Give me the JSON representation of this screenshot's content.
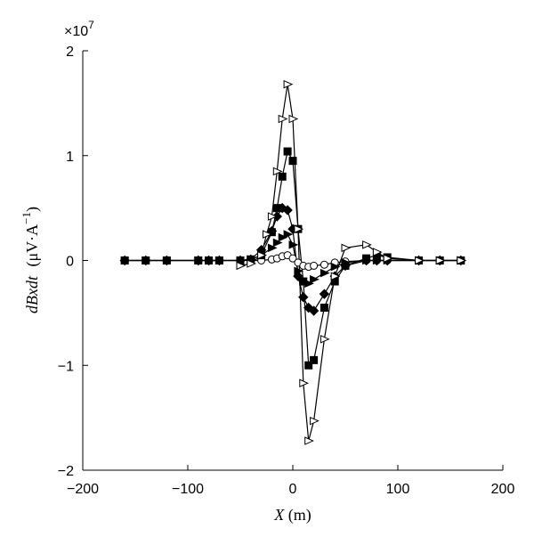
{
  "chart_data": {
    "type": "line",
    "title": "",
    "xlabel_var": "X",
    "xlabel_unit": "(m)",
    "ylabel_var": "dBxdt",
    "ylabel_unit_main": "(μV·A",
    "ylabel_unit_exp": "−1",
    "ylabel_unit_close": ")",
    "y_multiplier_base": "×10",
    "y_multiplier_exp": "7",
    "xlim": [
      -200,
      200
    ],
    "ylim": [
      -2,
      2
    ],
    "xticks": [
      -200,
      -100,
      0,
      100,
      200
    ],
    "xtick_labels": [
      "−200",
      "−100",
      "0",
      "100",
      "200"
    ],
    "yticks": [
      -2,
      -1,
      0,
      1,
      2
    ],
    "ytick_labels": [
      "−2",
      "−1",
      "0",
      "1",
      "2"
    ],
    "grid": false,
    "series": [
      {
        "marker": "circle-open",
        "x": [
          -160,
          -140,
          -120,
          -90,
          -80,
          -70,
          -50,
          -40,
          -30,
          -20,
          -15,
          -10,
          -5,
          0,
          5,
          10,
          15,
          20,
          30,
          40,
          50,
          70,
          80,
          90,
          120,
          140,
          160
        ],
        "y": [
          0,
          0,
          0,
          0,
          0,
          0,
          0,
          0,
          0,
          0.01,
          0.02,
          0.04,
          0.05,
          0.02,
          -0.02,
          -0.05,
          -0.06,
          -0.05,
          -0.04,
          -0.02,
          -0.01,
          0,
          0,
          0,
          0,
          0,
          0
        ]
      },
      {
        "marker": "triangle-filled",
        "x": [
          -160,
          -140,
          -120,
          -90,
          -80,
          -70,
          -50,
          -40,
          -30,
          -20,
          -15,
          -10,
          -5,
          0,
          5,
          10,
          15,
          20,
          30,
          40,
          50,
          70,
          80,
          90,
          120,
          140,
          160
        ],
        "y": [
          0,
          0,
          0,
          0,
          0,
          0,
          0,
          0.01,
          0.05,
          0.12,
          0.17,
          0.22,
          0.25,
          0.15,
          -0.1,
          -0.2,
          -0.22,
          -0.18,
          -0.12,
          -0.06,
          -0.02,
          0,
          0,
          0,
          0,
          0,
          0
        ]
      },
      {
        "marker": "diamond-filled",
        "x": [
          -160,
          -140,
          -120,
          -90,
          -80,
          -70,
          -50,
          -40,
          -30,
          -20,
          -15,
          -10,
          -5,
          0,
          5,
          10,
          15,
          20,
          30,
          40,
          50,
          70,
          80,
          90,
          120,
          140,
          160
        ],
        "y": [
          0,
          0,
          0,
          0,
          0,
          0,
          0,
          0.01,
          0.1,
          0.28,
          0.42,
          0.5,
          0.48,
          0.3,
          -0.15,
          -0.35,
          -0.45,
          -0.48,
          -0.32,
          -0.15,
          -0.05,
          0,
          0,
          0,
          0,
          0,
          0
        ]
      },
      {
        "marker": "square-filled",
        "x": [
          -160,
          -140,
          -120,
          -90,
          -80,
          -70,
          -50,
          -40,
          -30,
          -20,
          -15,
          -10,
          -5,
          0,
          5,
          10,
          15,
          20,
          30,
          40,
          50,
          70,
          80,
          90,
          120,
          140,
          160
        ],
        "y": [
          0,
          0,
          0,
          0,
          0,
          0,
          0,
          0.01,
          0.05,
          0.27,
          0.5,
          0.8,
          1.04,
          0.95,
          0.3,
          -0.2,
          -1.0,
          -0.95,
          -0.45,
          -0.2,
          -0.05,
          0.02,
          0.05,
          0.03,
          0,
          0,
          0
        ]
      },
      {
        "marker": "triangle-open",
        "x": [
          -50,
          -40,
          -30,
          -25,
          -20,
          -15,
          -10,
          -5,
          0,
          5,
          10,
          15,
          20,
          30,
          40,
          50,
          70,
          80,
          90,
          120,
          140,
          160
        ],
        "y": [
          -0.05,
          -0.03,
          0.05,
          0.25,
          0.42,
          0.85,
          1.35,
          1.68,
          1.35,
          0.3,
          -1.17,
          -1.72,
          -1.53,
          -0.75,
          -0.15,
          0.12,
          0.15,
          0.08,
          0.02,
          0,
          0,
          0
        ]
      }
    ]
  }
}
